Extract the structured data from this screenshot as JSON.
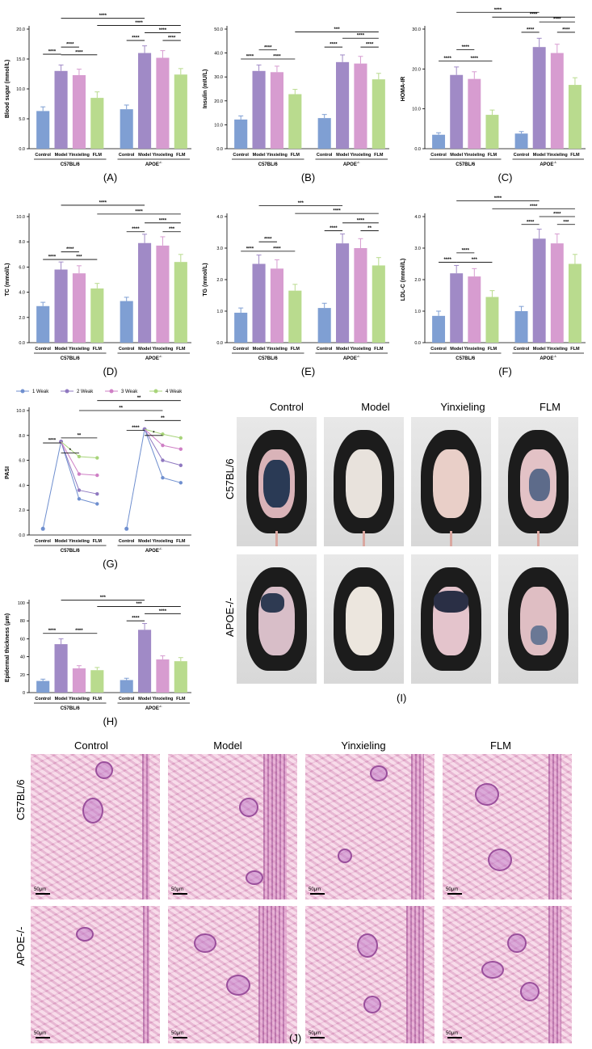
{
  "panel_labels": {
    "A": "(A)",
    "B": "(B)",
    "C": "(C)",
    "D": "(D)",
    "E": "(E)",
    "F": "(F)",
    "G": "(G)",
    "H": "(H)",
    "I": "(I)",
    "J": "(J)"
  },
  "colors": {
    "control": "#7f9fd3",
    "model": "#a08ac6",
    "yinxieling": "#d79cd0",
    "flm": "#b9db8e"
  },
  "chart_data": [
    {
      "id": "A",
      "type": "bar",
      "ylabel": "Blood sugar (mmol/L)",
      "ylim": [
        0,
        20
      ],
      "yticks": [
        "0.0",
        "5.0",
        "10.0",
        "15.0",
        "20.0"
      ],
      "categories": [
        "Control",
        "Model",
        "Yinxieling",
        "FLM"
      ],
      "groups": [
        "C57BL/6",
        "APOE-/-"
      ],
      "values": [
        [
          6.3,
          13.0,
          12.3,
          8.5
        ],
        [
          6.6,
          16.0,
          15.2,
          12.4
        ]
      ],
      "errors": [
        [
          0.7,
          1.0,
          1.0,
          1.0
        ],
        [
          0.7,
          1.2,
          1.2,
          1.0
        ]
      ],
      "sig": [
        {
          "g": 0,
          "from": 0,
          "to": 1,
          "text": "****",
          "y": 15.8
        },
        {
          "g": 0,
          "from": 1,
          "to": 2,
          "text": "****",
          "y": 17.0
        },
        {
          "g": 0,
          "from": 1,
          "to": 3,
          "text": "****",
          "y": 15.7
        },
        {
          "g": 1,
          "from": 0,
          "to": 1,
          "text": "****",
          "y": 18.1
        },
        {
          "g": 1,
          "from": 1,
          "to": 3,
          "text": "****",
          "y": 19.4
        },
        {
          "g": 1,
          "from": 2,
          "to": 3,
          "text": "****",
          "y": 18.1
        },
        {
          "cross": true,
          "from": [
            0,
            1
          ],
          "to": [
            1,
            1
          ],
          "text": "****",
          "y": 21.8
        },
        {
          "cross": true,
          "from": [
            0,
            3
          ],
          "to": [
            1,
            3
          ],
          "text": "****",
          "y": 20.6
        }
      ]
    },
    {
      "id": "B",
      "type": "bar",
      "ylabel": "Insulin (mIU/L)",
      "ylim": [
        0,
        50
      ],
      "yticks": [
        "0.0",
        "10.0",
        "20.0",
        "30.0",
        "40.0",
        "50.0"
      ],
      "categories": [
        "Control",
        "Model",
        "Yinxieling",
        "FLM"
      ],
      "groups": [
        "C57BL/6",
        "APOE-/-"
      ],
      "values": [
        [
          12.2,
          32.5,
          32.0,
          22.8
        ],
        [
          12.8,
          36.2,
          35.6,
          29.0
        ]
      ],
      "errors": [
        [
          1.5,
          2.5,
          2.5,
          2.0
        ],
        [
          1.5,
          3.0,
          3.0,
          2.5
        ]
      ],
      "sig": [
        {
          "g": 0,
          "from": 0,
          "to": 1,
          "text": "****",
          "y": 37.5
        },
        {
          "g": 0,
          "from": 1,
          "to": 2,
          "text": "****",
          "y": 41.3
        },
        {
          "g": 0,
          "from": 1,
          "to": 3,
          "text": "****",
          "y": 37.5
        },
        {
          "g": 1,
          "from": 0,
          "to": 1,
          "text": "****",
          "y": 42.5
        },
        {
          "g": 1,
          "from": 1,
          "to": 3,
          "text": "****",
          "y": 46.2
        },
        {
          "g": 1,
          "from": 2,
          "to": 3,
          "text": "****",
          "y": 42.5
        },
        {
          "cross": true,
          "from": [
            0,
            3
          ],
          "to": [
            1,
            3
          ],
          "text": "***",
          "y": 48.8
        }
      ]
    },
    {
      "id": "C",
      "type": "bar",
      "ylabel": "HOMA-IR",
      "ylim": [
        0,
        30
      ],
      "yticks": [
        "0.0",
        "10.0",
        "20.0",
        "30.0"
      ],
      "categories": [
        "Control",
        "Model",
        "Yinxieling",
        "FLM"
      ],
      "groups": [
        "C57BL/6",
        "APOE-/-"
      ],
      "values": [
        [
          3.5,
          18.5,
          17.5,
          8.5
        ],
        [
          3.8,
          25.5,
          24.0,
          16.0
        ]
      ],
      "errors": [
        [
          0.5,
          2.0,
          1.8,
          1.2
        ],
        [
          0.5,
          2.2,
          2.2,
          1.8
        ]
      ],
      "sig": [
        {
          "g": 0,
          "from": 0,
          "to": 1,
          "text": "****",
          "y": 22.0
        },
        {
          "g": 0,
          "from": 1,
          "to": 2,
          "text": "****",
          "y": 24.8
        },
        {
          "g": 0,
          "from": 1,
          "to": 3,
          "text": "****",
          "y": 22.0
        },
        {
          "g": 1,
          "from": 0,
          "to": 1,
          "text": "****",
          "y": 29.2
        },
        {
          "g": 1,
          "from": 1,
          "to": 3,
          "text": "****",
          "y": 31.8
        },
        {
          "g": 1,
          "from": 2,
          "to": 3,
          "text": "****",
          "y": 29.2
        },
        {
          "cross": true,
          "from": [
            0,
            1
          ],
          "to": [
            1,
            1
          ],
          "text": "****",
          "y": 34.2
        },
        {
          "cross": true,
          "from": [
            0,
            3
          ],
          "to": [
            1,
            3
          ],
          "text": "****",
          "y": 33.0
        }
      ]
    },
    {
      "id": "D",
      "type": "bar",
      "ylabel": "TC (mmol/L)",
      "ylim": [
        0,
        10
      ],
      "yticks": [
        "0.0",
        "2.0",
        "4.0",
        "6.0",
        "8.0",
        "10.0"
      ],
      "categories": [
        "Control",
        "Model",
        "Yinxieling",
        "FLM"
      ],
      "groups": [
        "C57BL/6",
        "APOE-/-"
      ],
      "values": [
        [
          2.9,
          5.8,
          5.5,
          4.3
        ],
        [
          3.3,
          7.9,
          7.7,
          6.4
        ]
      ],
      "errors": [
        [
          0.3,
          0.6,
          0.6,
          0.4
        ],
        [
          0.3,
          0.7,
          0.7,
          0.6
        ]
      ],
      "sig": [
        {
          "g": 0,
          "from": 0,
          "to": 1,
          "text": "****",
          "y": 6.6
        },
        {
          "g": 0,
          "from": 1,
          "to": 2,
          "text": "****",
          "y": 7.2
        },
        {
          "g": 0,
          "from": 1,
          "to": 3,
          "text": "***",
          "y": 6.6
        },
        {
          "g": 1,
          "from": 0,
          "to": 1,
          "text": "****",
          "y": 8.8
        },
        {
          "g": 1,
          "from": 1,
          "to": 3,
          "text": "****",
          "y": 9.5
        },
        {
          "g": 1,
          "from": 2,
          "to": 3,
          "text": "***",
          "y": 8.8
        },
        {
          "cross": true,
          "from": [
            0,
            1
          ],
          "to": [
            1,
            1
          ],
          "text": "****",
          "y": 10.9
        },
        {
          "cross": true,
          "from": [
            0,
            3
          ],
          "to": [
            1,
            3
          ],
          "text": "****",
          "y": 10.2
        }
      ]
    },
    {
      "id": "E",
      "type": "bar",
      "ylabel": "TG (mmol/L)",
      "ylim": [
        0,
        4
      ],
      "yticks": [
        "0.0",
        "1.0",
        "2.0",
        "3.0",
        "4.0"
      ],
      "categories": [
        "Control",
        "Model",
        "Yinxieling",
        "FLM"
      ],
      "groups": [
        "C57BL/6",
        "APOE-/-"
      ],
      "values": [
        [
          0.95,
          2.5,
          2.35,
          1.65
        ],
        [
          1.1,
          3.15,
          3.0,
          2.45
        ]
      ],
      "errors": [
        [
          0.15,
          0.28,
          0.28,
          0.2
        ],
        [
          0.15,
          0.3,
          0.3,
          0.25
        ]
      ],
      "sig": [
        {
          "g": 0,
          "from": 0,
          "to": 1,
          "text": "****",
          "y": 2.9
        },
        {
          "g": 0,
          "from": 1,
          "to": 2,
          "text": "****",
          "y": 3.2
        },
        {
          "g": 0,
          "from": 1,
          "to": 3,
          "text": "****",
          "y": 2.9
        },
        {
          "g": 1,
          "from": 0,
          "to": 1,
          "text": "****",
          "y": 3.55
        },
        {
          "g": 1,
          "from": 1,
          "to": 3,
          "text": "****",
          "y": 3.8
        },
        {
          "g": 1,
          "from": 2,
          "to": 3,
          "text": "**",
          "y": 3.55
        },
        {
          "cross": true,
          "from": [
            0,
            1
          ],
          "to": [
            1,
            1
          ],
          "text": "***",
          "y": 4.35
        },
        {
          "cross": true,
          "from": [
            0,
            3
          ],
          "to": [
            1,
            3
          ],
          "text": "****",
          "y": 4.1
        }
      ]
    },
    {
      "id": "F",
      "type": "bar",
      "ylabel": "LDL-C (mmol/L)",
      "ylim": [
        0,
        4
      ],
      "yticks": [
        "0.0",
        "1.0",
        "2.0",
        "3.0",
        "4.0"
      ],
      "categories": [
        "Control",
        "Model",
        "Yinxieling",
        "FLM"
      ],
      "groups": [
        "C57BL/6",
        "APOE-/-"
      ],
      "values": [
        [
          0.85,
          2.2,
          2.1,
          1.45
        ],
        [
          1.0,
          3.3,
          3.15,
          2.5
        ]
      ],
      "errors": [
        [
          0.15,
          0.25,
          0.25,
          0.2
        ],
        [
          0.15,
          0.3,
          0.3,
          0.3
        ]
      ],
      "sig": [
        {
          "g": 0,
          "from": 0,
          "to": 1,
          "text": "****",
          "y": 2.55
        },
        {
          "g": 0,
          "from": 1,
          "to": 2,
          "text": "****",
          "y": 2.85
        },
        {
          "g": 0,
          "from": 1,
          "to": 3,
          "text": "***",
          "y": 2.55
        },
        {
          "g": 1,
          "from": 0,
          "to": 1,
          "text": "****",
          "y": 3.75
        },
        {
          "g": 1,
          "from": 1,
          "to": 3,
          "text": "****",
          "y": 4.0
        },
        {
          "g": 1,
          "from": 2,
          "to": 3,
          "text": "***",
          "y": 3.75
        },
        {
          "cross": true,
          "from": [
            0,
            1
          ],
          "to": [
            1,
            1
          ],
          "text": "****",
          "y": 4.5
        },
        {
          "cross": true,
          "from": [
            0,
            3
          ],
          "to": [
            1,
            3
          ],
          "text": "****",
          "y": 4.25
        }
      ]
    },
    {
      "id": "G",
      "type": "line",
      "ylabel": "PASI",
      "ylim": [
        0,
        10
      ],
      "yticks": [
        "0.0",
        "2.0",
        "4.0",
        "6.0",
        "8.0",
        "10.0"
      ],
      "categories": [
        "Control",
        "Model",
        "Yinxieling",
        "FLM"
      ],
      "groups": [
        "C57BL/6",
        "APOE-/-"
      ],
      "legend": [
        "1 Weak",
        "2 Weak",
        "3 Weak",
        "4 Weak"
      ],
      "legend_colors": [
        "#6f8fcf",
        "#8f78c0",
        "#cf7fc5",
        "#a8d47a"
      ],
      "control": [
        0.5,
        0.5
      ],
      "model": [
        7.5,
        8.5
      ],
      "weeks": [
        [
          [
            2.9,
            2.5
          ],
          [
            3.6,
            3.3
          ],
          [
            4.9,
            4.8
          ],
          [
            6.3,
            6.2
          ]
        ],
        [
          [
            4.6,
            4.2
          ],
          [
            6.0,
            5.6
          ],
          [
            7.2,
            6.9
          ],
          [
            8.1,
            7.8
          ]
        ]
      ],
      "sig": [
        {
          "g": 0,
          "from": 0,
          "to": 1,
          "text": "****",
          "y": 7.4
        },
        {
          "g": 0,
          "from": 1,
          "to": 2,
          "text": "*",
          "y": 6.6
        },
        {
          "g": 0,
          "from": 1,
          "to": 3,
          "text": "**",
          "y": 7.8
        },
        {
          "g": 1,
          "from": 0,
          "to": 1,
          "text": "****",
          "y": 8.4
        },
        {
          "g": 1,
          "from": 1,
          "to": 2,
          "text": "*",
          "y": 8.0
        },
        {
          "g": 1,
          "from": 1,
          "to": 3,
          "text": "**",
          "y": 9.2
        },
        {
          "cross": true,
          "from": [
            0,
            2
          ],
          "to": [
            1,
            2
          ],
          "text": "**",
          "y": 10.0
        },
        {
          "cross": true,
          "from": [
            0,
            3
          ],
          "to": [
            1,
            3
          ],
          "text": "**",
          "y": 10.8
        }
      ]
    },
    {
      "id": "H",
      "type": "bar",
      "ylabel": "Epidermal thickness (μm)",
      "ylim": [
        0,
        100
      ],
      "yticks": [
        "0",
        "20",
        "40",
        "60",
        "80",
        "100"
      ],
      "categories": [
        "Control",
        "Model",
        "Yinxieling",
        "FLM"
      ],
      "groups": [
        "C57BL/6",
        "APOE-/-"
      ],
      "values": [
        [
          13,
          54,
          27,
          25
        ],
        [
          14,
          70,
          37,
          35
        ]
      ],
      "errors": [
        [
          2,
          6,
          3,
          3
        ],
        [
          2,
          7,
          4,
          4
        ]
      ],
      "sig": [
        {
          "g": 0,
          "from": 0,
          "to": 1,
          "text": "****",
          "y": 66
        },
        {
          "g": 0,
          "from": 1,
          "to": 3,
          "text": "****",
          "y": 66
        },
        {
          "g": 1,
          "from": 0,
          "to": 1,
          "text": "****",
          "y": 80
        },
        {
          "g": 1,
          "from": 1,
          "to": 3,
          "text": "****",
          "y": 88
        },
        {
          "cross": true,
          "from": [
            0,
            3
          ],
          "to": [
            1,
            3
          ],
          "text": "***",
          "y": 96
        },
        {
          "cross": true,
          "from": [
            0,
            1
          ],
          "to": [
            1,
            1
          ],
          "text": "***",
          "y": 103
        }
      ]
    }
  ],
  "groups_display": [
    "C57BL/6",
    "APOE-/-"
  ],
  "photos": {
    "columns": [
      "Control",
      "Model",
      "Yinxieling",
      "FLM"
    ],
    "rows": [
      "C57BL/6",
      "APOE-/-"
    ]
  },
  "histology": {
    "columns": [
      "Control",
      "Model",
      "Yinxieling",
      "FLM"
    ],
    "rows": [
      "C57BL/6",
      "APOE-/-"
    ],
    "scale": "50μm"
  }
}
